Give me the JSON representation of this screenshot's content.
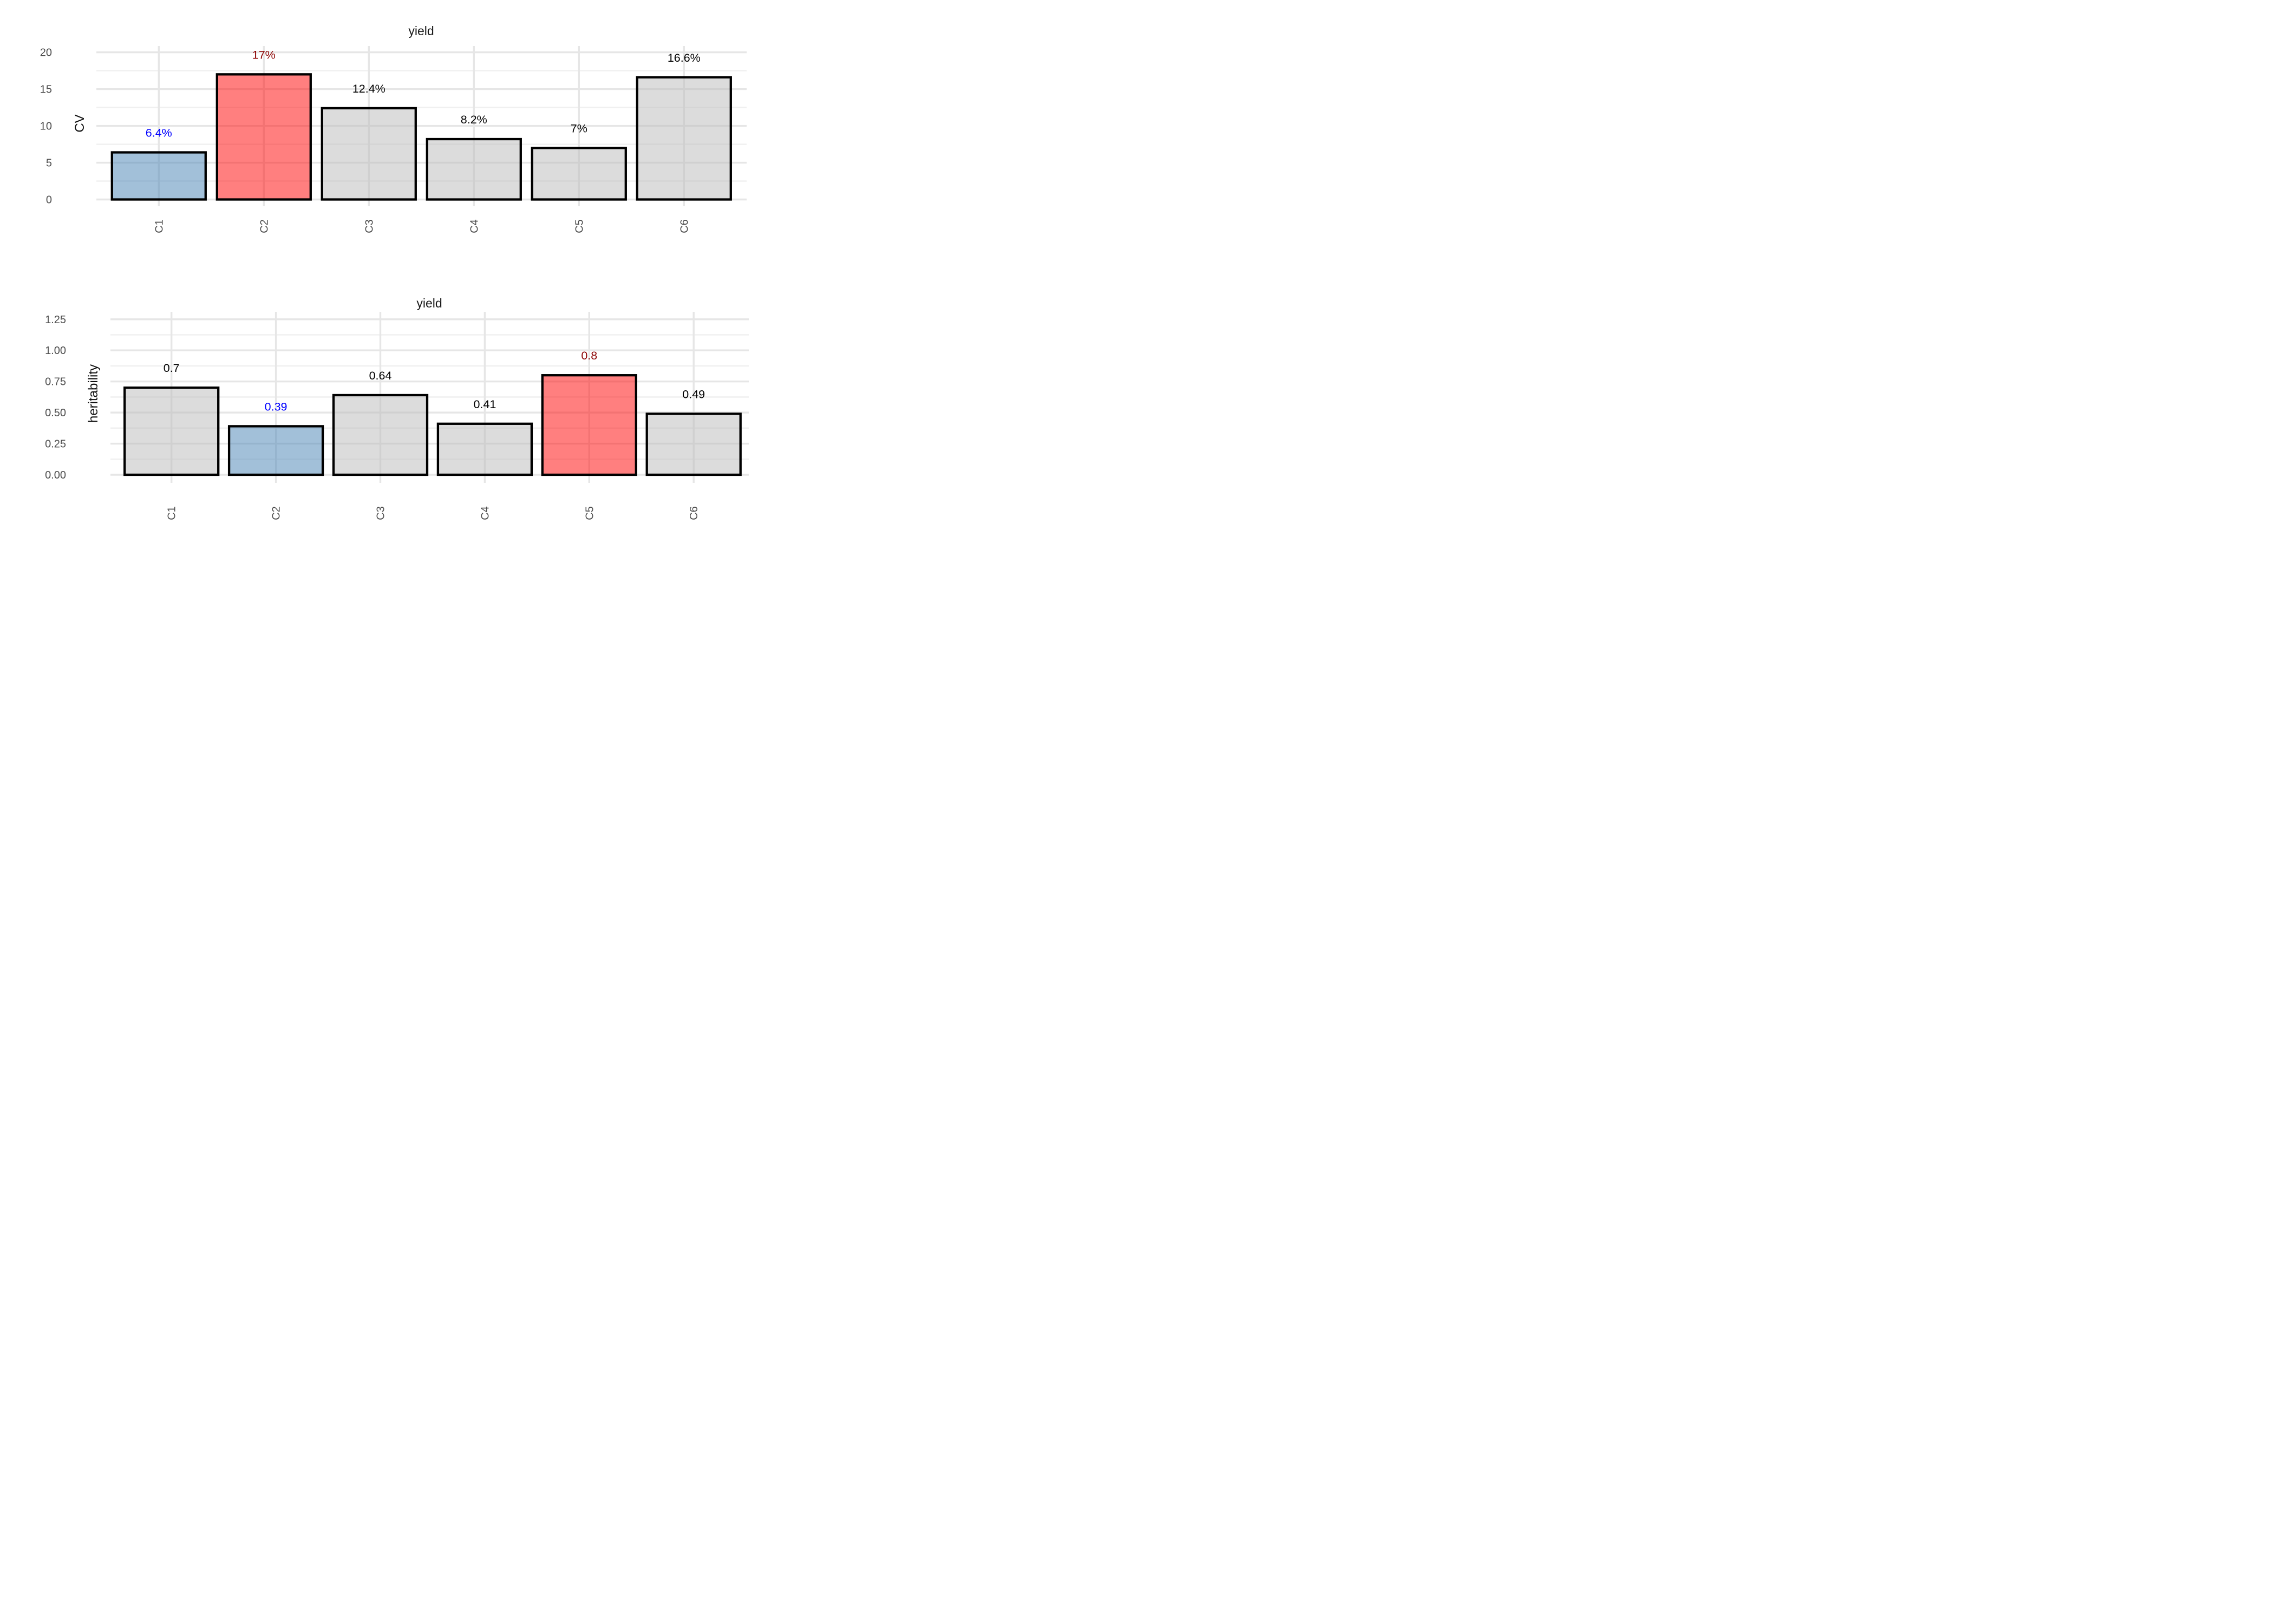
{
  "figure": {
    "background": "#FFFFFF"
  },
  "style": {
    "bar_fill_normal": "#B9B9B9",
    "bar_fill_highest": "#FF0000",
    "bar_fill_lowest": "#4682B4",
    "bar_fill_opacity": 0.5,
    "bar_stroke_color": "#000000",
    "label_color_normal": "#000000",
    "label_color_highest": "#8B0000",
    "label_color_lowest": "#0000FF",
    "grid_major_color": "#E6E6E6",
    "grid_minor_color": "#F0F0F0",
    "axis_text_color": "#4D4D4D",
    "title_color": "#1A1A1A"
  },
  "chart_data": [
    {
      "type": "bar",
      "title": "yield",
      "xlabel": "",
      "ylabel": "CV",
      "categories": [
        "C1",
        "C2",
        "C3",
        "C4",
        "C5",
        "C6"
      ],
      "values": [
        6.4,
        17,
        12.4,
        8.2,
        7,
        16.6
      ],
      "bar_labels": [
        "6.4%",
        "17%",
        "12.4%",
        "8.2%",
        "7%",
        "16.6%"
      ],
      "bar_roles": [
        "lowest",
        "highest",
        "normal",
        "normal",
        "normal",
        "normal"
      ],
      "yticks": [
        0,
        5,
        10,
        15,
        20
      ],
      "ytick_labels": [
        "0",
        "5",
        "10",
        "15",
        "20"
      ],
      "ylim": [
        0,
        20.85
      ],
      "grid": true,
      "legend": "none",
      "bar_outline": "black",
      "x_tick_rotation_deg": -90
    },
    {
      "type": "bar",
      "title": "yield",
      "xlabel": "",
      "ylabel": "heritability",
      "categories": [
        "C1",
        "C2",
        "C3",
        "C4",
        "C5",
        "C6"
      ],
      "values": [
        0.7,
        0.39,
        0.64,
        0.41,
        0.8,
        0.49
      ],
      "bar_labels": [
        "0.7",
        "0.39",
        "0.64",
        "0.41",
        "0.8",
        "0.49"
      ],
      "bar_roles": [
        "normal",
        "lowest",
        "normal",
        "normal",
        "highest",
        "normal"
      ],
      "yticks": [
        0,
        0.25,
        0.5,
        0.75,
        1,
        1.25
      ],
      "ytick_labels": [
        "0.00",
        "0.25",
        "0.50",
        "0.75",
        "1.00",
        "1.25"
      ],
      "ylim": [
        0,
        1.31
      ],
      "grid": true,
      "legend": "none",
      "bar_outline": "black",
      "x_tick_rotation_deg": -90
    }
  ]
}
